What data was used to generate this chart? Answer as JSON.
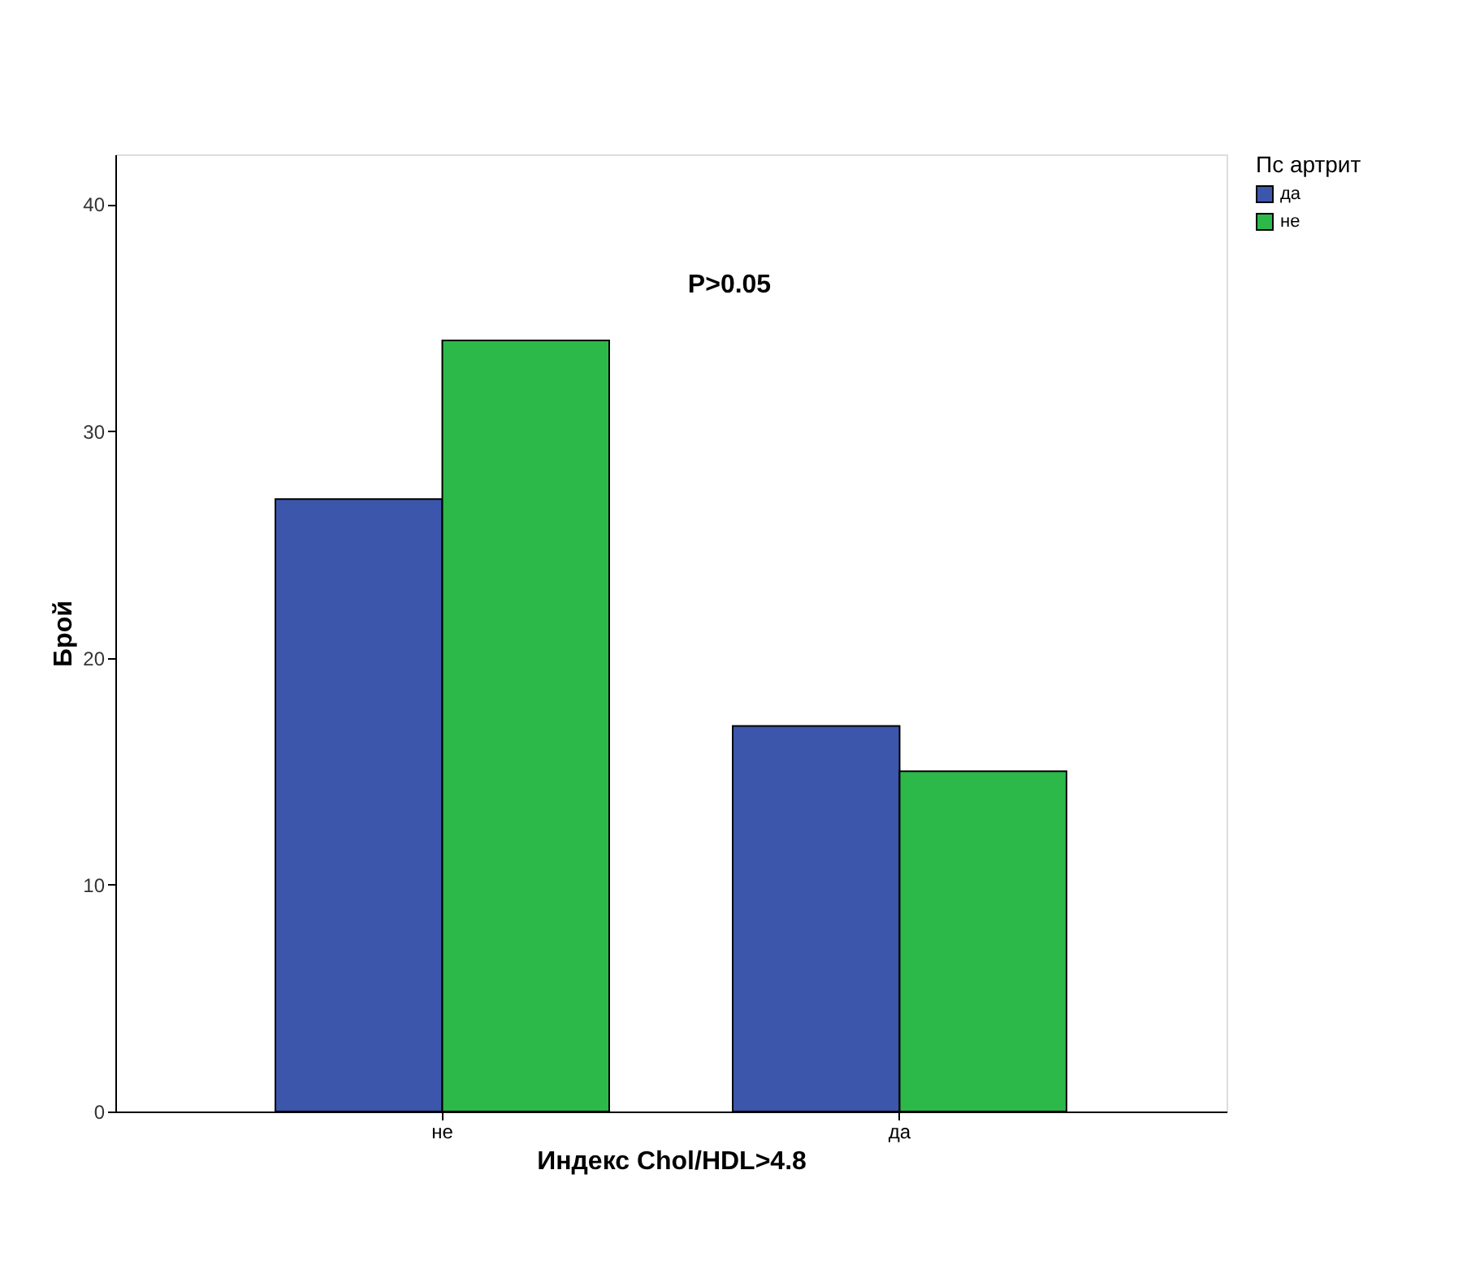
{
  "chart_data": {
    "type": "bar",
    "xlabel": "Индекс Chol/HDL>4.8",
    "ylabel": "Брой",
    "legend_title": "Пс артрит",
    "categories": [
      "не",
      "да"
    ],
    "series": [
      {
        "name": "да",
        "color": "#3c56ac",
        "values": [
          27,
          17
        ]
      },
      {
        "name": "не",
        "color": "#2db84a",
        "values": [
          34,
          15
        ]
      }
    ],
    "ylim": [
      0,
      42.2
    ],
    "yticks": [
      0,
      10,
      20,
      30,
      40
    ],
    "grid": false,
    "legend": "top right",
    "annotations": [
      "P>0.05"
    ]
  }
}
